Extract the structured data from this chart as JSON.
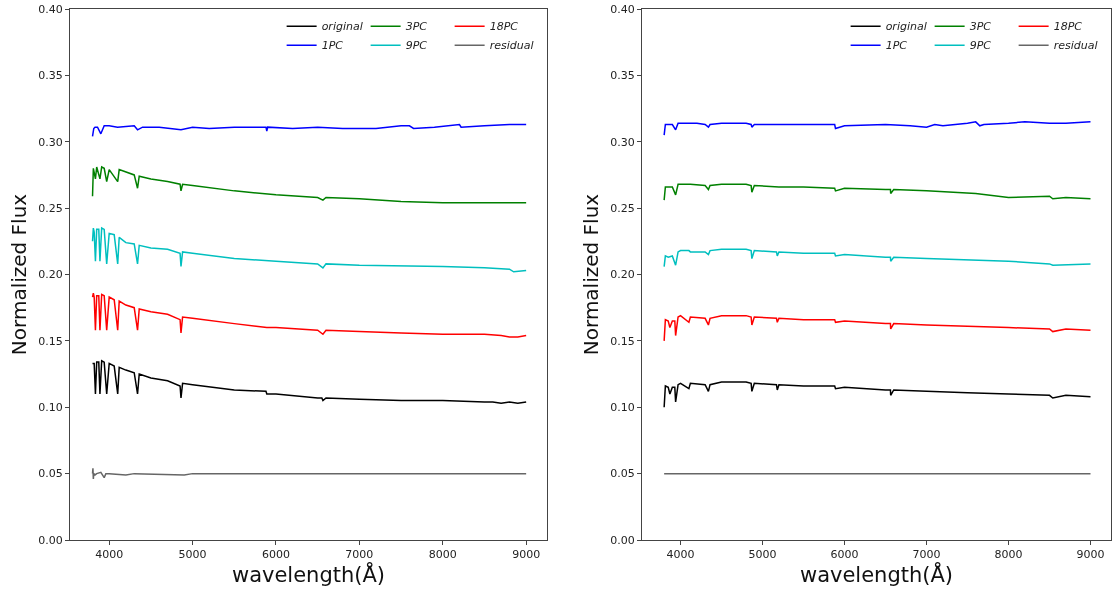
{
  "chart_data": [
    {
      "type": "line",
      "xlabel": "wavelength(Å)",
      "ylabel": "Normalized Flux",
      "xlim": [
        3530,
        9250
      ],
      "xticks": [
        4000,
        5000,
        6000,
        7000,
        8000,
        9000
      ],
      "ylim": [
        0,
        0.4
      ],
      "yticks": [
        {
          "value": 0,
          "label": "0.00"
        },
        0.05,
        {
          "value": 0.1,
          "label": "0.10"
        },
        0.15,
        {
          "value": 0.2,
          "label": "0.20"
        },
        0.25,
        {
          "value": 0.3,
          "label": "0.30"
        },
        0.35,
        {
          "value": 0.4,
          "label": "0.40"
        }
      ],
      "grid": false,
      "legend": "top right",
      "line_style": "solid",
      "marker": "none",
      "series": [
        {
          "name": "original",
          "color": "#000000",
          "x": [
            3800,
            3820,
            3835,
            3850,
            3875,
            3889,
            3910,
            3940,
            3970,
            4000,
            4060,
            4102,
            4120,
            4200,
            4300,
            4340,
            4360,
            4500,
            4700,
            4850,
            4861,
            4880,
            5000,
            5500,
            5880,
            5890,
            6000,
            6500,
            6550,
            6563,
            6600,
            7000,
            7500,
            8000,
            8500,
            8600,
            8700,
            8800,
            8900,
            9000
          ],
          "values": [
            0.133,
            0.133,
            0.11,
            0.134,
            0.134,
            0.11,
            0.135,
            0.134,
            0.11,
            0.133,
            0.131,
            0.11,
            0.13,
            0.128,
            0.126,
            0.11,
            0.125,
            0.122,
            0.12,
            0.116,
            0.107,
            0.118,
            0.117,
            0.113,
            0.112,
            0.11,
            0.11,
            0.107,
            0.107,
            0.105,
            0.107,
            0.106,
            0.105,
            0.105,
            0.104,
            0.104,
            0.103,
            0.104,
            0.103,
            0.104
          ]
        },
        {
          "name": "1PC",
          "color": "#0000ff",
          "x": [
            3800,
            3815,
            3830,
            3860,
            3900,
            3940,
            4000,
            4100,
            4300,
            4340,
            4400,
            4600,
            4861,
            5000,
            5200,
            5500,
            5880,
            5890,
            5900,
            6200,
            6500,
            6800,
            7000,
            7200,
            7500,
            7600,
            7650,
            7900,
            8200,
            8220,
            8500,
            8800,
            9000
          ],
          "values": [
            0.304,
            0.31,
            0.311,
            0.311,
            0.306,
            0.312,
            0.312,
            0.311,
            0.312,
            0.309,
            0.311,
            0.311,
            0.309,
            0.311,
            0.31,
            0.311,
            0.311,
            0.308,
            0.311,
            0.31,
            0.311,
            0.31,
            0.31,
            0.31,
            0.312,
            0.312,
            0.31,
            0.311,
            0.313,
            0.311,
            0.312,
            0.313,
            0.313
          ]
        },
        {
          "name": "3PC",
          "color": "#008000",
          "x": [
            3800,
            3810,
            3835,
            3850,
            3889,
            3910,
            3940,
            3970,
            4000,
            4102,
            4120,
            4300,
            4340,
            4360,
            4500,
            4700,
            4850,
            4861,
            4880,
            5000,
            5500,
            6000,
            6500,
            6563,
            6600,
            7000,
            7500,
            8000,
            8500,
            9000
          ],
          "values": [
            0.259,
            0.28,
            0.272,
            0.281,
            0.272,
            0.281,
            0.28,
            0.27,
            0.279,
            0.27,
            0.279,
            0.275,
            0.265,
            0.274,
            0.272,
            0.27,
            0.268,
            0.263,
            0.268,
            0.267,
            0.263,
            0.26,
            0.258,
            0.256,
            0.258,
            0.257,
            0.255,
            0.254,
            0.254,
            0.254
          ]
        },
        {
          "name": "9PC",
          "color": "#00bfbf",
          "x": [
            3800,
            3810,
            3820,
            3835,
            3850,
            3875,
            3889,
            3910,
            3940,
            3970,
            4000,
            4060,
            4102,
            4120,
            4200,
            4300,
            4340,
            4360,
            4500,
            4700,
            4850,
            4861,
            4880,
            5000,
            5500,
            6000,
            6500,
            6563,
            6600,
            7000,
            8000,
            8500,
            8800,
            8850,
            9000
          ],
          "values": [
            0.225,
            0.235,
            0.232,
            0.21,
            0.234,
            0.234,
            0.21,
            0.235,
            0.234,
            0.208,
            0.231,
            0.23,
            0.208,
            0.228,
            0.224,
            0.223,
            0.208,
            0.222,
            0.22,
            0.219,
            0.216,
            0.206,
            0.217,
            0.216,
            0.212,
            0.21,
            0.208,
            0.205,
            0.208,
            0.207,
            0.206,
            0.205,
            0.204,
            0.202,
            0.203
          ]
        },
        {
          "name": "18PC",
          "color": "#ff0000",
          "x": [
            3800,
            3810,
            3820,
            3835,
            3850,
            3875,
            3889,
            3910,
            3940,
            3970,
            4000,
            4060,
            4102,
            4120,
            4200,
            4300,
            4340,
            4360,
            4500,
            4700,
            4850,
            4861,
            4880,
            5000,
            5500,
            5890,
            6000,
            6500,
            6563,
            6600,
            7000,
            7500,
            8000,
            8500,
            8700,
            8800,
            8900,
            9000
          ],
          "values": [
            0.183,
            0.186,
            0.183,
            0.158,
            0.184,
            0.184,
            0.158,
            0.185,
            0.184,
            0.158,
            0.183,
            0.181,
            0.158,
            0.18,
            0.177,
            0.175,
            0.158,
            0.174,
            0.172,
            0.17,
            0.166,
            0.156,
            0.168,
            0.167,
            0.163,
            0.16,
            0.16,
            0.158,
            0.155,
            0.158,
            0.157,
            0.156,
            0.155,
            0.155,
            0.154,
            0.153,
            0.153,
            0.154
          ]
        },
        {
          "name": "residual",
          "color": "#666666",
          "x": [
            3800,
            3805,
            3810,
            3815,
            3830,
            3850,
            3900,
            3940,
            3960,
            4000,
            4200,
            4300,
            4900,
            5000,
            6000,
            7000,
            8000,
            9000
          ],
          "values": [
            0.05,
            0.054,
            0.046,
            0.05,
            0.049,
            0.05,
            0.051,
            0.047,
            0.05,
            0.05,
            0.049,
            0.05,
            0.049,
            0.05,
            0.05,
            0.05,
            0.05,
            0.05
          ]
        }
      ]
    },
    {
      "type": "line",
      "xlabel": "wavelength(Å)",
      "ylabel": "Normalized Flux",
      "xlim": [
        3530,
        9250
      ],
      "xticks": [
        4000,
        5000,
        6000,
        7000,
        8000,
        9000
      ],
      "ylim": [
        0,
        0.4
      ],
      "yticks": [
        {
          "value": 0,
          "label": "0.00"
        },
        0.05,
        {
          "value": 0.1,
          "label": "0.10"
        },
        0.15,
        {
          "value": 0.2,
          "label": "0.20"
        },
        0.25,
        {
          "value": 0.3,
          "label": "0.30"
        },
        0.35,
        {
          "value": 0.4,
          "label": "0.40"
        }
      ],
      "grid": false,
      "legend": "top right",
      "line_style": "solid",
      "marker": "none",
      "series": [
        {
          "name": "original",
          "color": "#000000",
          "x": [
            3800,
            3815,
            3850,
            3870,
            3900,
            3930,
            3940,
            3970,
            4000,
            4102,
            4120,
            4300,
            4340,
            4360,
            4500,
            4800,
            4861,
            4870,
            4900,
            5170,
            5180,
            5200,
            5500,
            5880,
            5890,
            6000,
            6500,
            6560,
            6563,
            6600,
            7000,
            7500,
            8000,
            8500,
            8540,
            8700,
            9000
          ],
          "values": [
            0.1,
            0.116,
            0.115,
            0.11,
            0.115,
            0.115,
            0.104,
            0.117,
            0.118,
            0.114,
            0.118,
            0.117,
            0.112,
            0.117,
            0.119,
            0.119,
            0.118,
            0.112,
            0.118,
            0.117,
            0.113,
            0.117,
            0.116,
            0.116,
            0.114,
            0.115,
            0.113,
            0.113,
            0.109,
            0.113,
            0.112,
            0.111,
            0.11,
            0.109,
            0.107,
            0.109,
            0.108
          ]
        },
        {
          "name": "1PC",
          "color": "#0000ff",
          "x": [
            3800,
            3815,
            3850,
            3900,
            3940,
            3970,
            4000,
            4102,
            4200,
            4300,
            4340,
            4360,
            4500,
            4800,
            4861,
            4870,
            4900,
            5200,
            5500,
            5880,
            5890,
            6000,
            6500,
            6800,
            7000,
            7100,
            7200,
            7500,
            7600,
            7650,
            7700,
            8000,
            8200,
            8500,
            8700,
            9000
          ],
          "values": [
            0.305,
            0.313,
            0.313,
            0.313,
            0.309,
            0.314,
            0.314,
            0.314,
            0.314,
            0.313,
            0.311,
            0.313,
            0.314,
            0.314,
            0.313,
            0.311,
            0.313,
            0.313,
            0.313,
            0.313,
            0.31,
            0.312,
            0.313,
            0.312,
            0.311,
            0.313,
            0.312,
            0.314,
            0.315,
            0.312,
            0.313,
            0.314,
            0.315,
            0.314,
            0.314,
            0.315
          ]
        },
        {
          "name": "3PC",
          "color": "#008000",
          "x": [
            3800,
            3815,
            3850,
            3900,
            3940,
            3970,
            4000,
            4102,
            4120,
            4300,
            4340,
            4360,
            4500,
            4800,
            4861,
            4870,
            4900,
            5200,
            5500,
            5880,
            5890,
            6000,
            6500,
            6560,
            6563,
            6600,
            7000,
            7600,
            8000,
            8500,
            8540,
            8700,
            9000
          ],
          "values": [
            0.256,
            0.266,
            0.266,
            0.266,
            0.26,
            0.268,
            0.268,
            0.268,
            0.268,
            0.267,
            0.264,
            0.267,
            0.268,
            0.268,
            0.267,
            0.262,
            0.267,
            0.266,
            0.266,
            0.265,
            0.263,
            0.265,
            0.264,
            0.264,
            0.261,
            0.264,
            0.263,
            0.261,
            0.258,
            0.259,
            0.257,
            0.258,
            0.257
          ]
        },
        {
          "name": "9PC",
          "color": "#00bfbf",
          "x": [
            3800,
            3815,
            3850,
            3900,
            3940,
            3970,
            4000,
            4102,
            4120,
            4300,
            4340,
            4360,
            4500,
            4800,
            4861,
            4870,
            4900,
            5170,
            5180,
            5200,
            5500,
            5880,
            5890,
            6000,
            6500,
            6560,
            6563,
            6600,
            7000,
            8000,
            8500,
            8540,
            9000
          ],
          "values": [
            0.206,
            0.214,
            0.213,
            0.214,
            0.207,
            0.217,
            0.218,
            0.218,
            0.217,
            0.217,
            0.215,
            0.218,
            0.219,
            0.219,
            0.218,
            0.212,
            0.218,
            0.217,
            0.214,
            0.217,
            0.216,
            0.216,
            0.214,
            0.215,
            0.213,
            0.213,
            0.21,
            0.213,
            0.212,
            0.21,
            0.208,
            0.207,
            0.208
          ]
        },
        {
          "name": "18PC",
          "color": "#ff0000",
          "x": [
            3800,
            3815,
            3850,
            3870,
            3900,
            3930,
            3940,
            3970,
            4000,
            4102,
            4120,
            4300,
            4340,
            4360,
            4500,
            4800,
            4861,
            4870,
            4900,
            5170,
            5180,
            5200,
            5500,
            5880,
            5890,
            6000,
            6500,
            6560,
            6563,
            6600,
            7000,
            7500,
            8000,
            8500,
            8540,
            8700,
            9000
          ],
          "values": [
            0.15,
            0.166,
            0.165,
            0.16,
            0.165,
            0.165,
            0.154,
            0.168,
            0.169,
            0.164,
            0.168,
            0.167,
            0.162,
            0.167,
            0.169,
            0.169,
            0.168,
            0.162,
            0.168,
            0.167,
            0.164,
            0.167,
            0.166,
            0.166,
            0.164,
            0.165,
            0.163,
            0.163,
            0.159,
            0.163,
            0.162,
            0.161,
            0.16,
            0.159,
            0.157,
            0.159,
            0.158
          ]
        },
        {
          "name": "residual",
          "color": "#666666",
          "x": [
            3800,
            4000,
            5000,
            6000,
            7000,
            8000,
            9000
          ],
          "values": [
            0.05,
            0.05,
            0.05,
            0.05,
            0.05,
            0.05,
            0.05
          ]
        }
      ]
    }
  ]
}
